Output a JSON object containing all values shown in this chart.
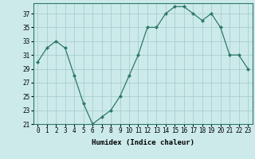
{
  "x": [
    0,
    1,
    2,
    3,
    4,
    5,
    6,
    7,
    8,
    9,
    10,
    11,
    12,
    13,
    14,
    15,
    16,
    17,
    18,
    19,
    20,
    21,
    22,
    23
  ],
  "y": [
    30,
    32,
    33,
    32,
    28,
    24,
    21,
    22,
    23,
    25,
    28,
    31,
    35,
    35,
    37,
    38,
    38,
    37,
    36,
    37,
    35,
    31,
    31,
    29
  ],
  "line_color": "#2d7a65",
  "marker": "D",
  "marker_size": 2.0,
  "bg_color": "#cceaea",
  "grid_color": "#aacece",
  "ylim": [
    21,
    38
  ],
  "yticks": [
    21,
    23,
    25,
    27,
    29,
    31,
    33,
    35,
    37
  ],
  "xticks": [
    0,
    1,
    2,
    3,
    4,
    5,
    6,
    7,
    8,
    9,
    10,
    11,
    12,
    13,
    14,
    15,
    16,
    17,
    18,
    19,
    20,
    21,
    22,
    23
  ],
  "xlabel": "Humidex (Indice chaleur)",
  "xlabel_fontsize": 6.5,
  "tick_fontsize": 5.5,
  "linewidth": 0.9
}
